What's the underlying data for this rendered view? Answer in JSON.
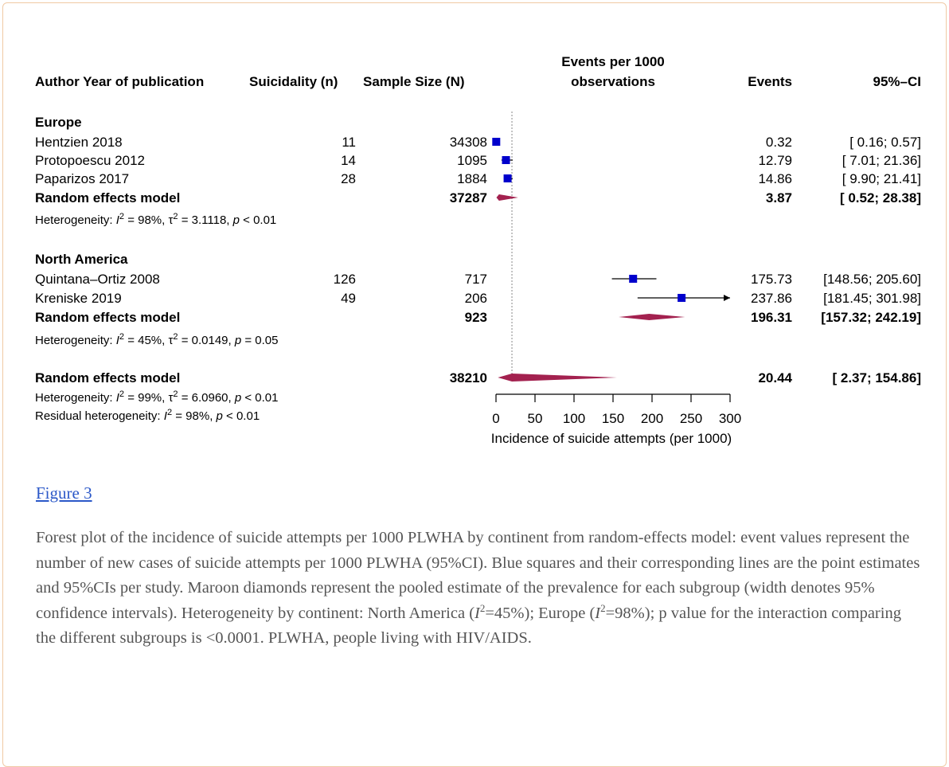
{
  "chart_data": {
    "type": "forest",
    "header": {
      "author": "Author Year of publication",
      "suicidality": "Suicidality (n)",
      "sample": "Sample Size (N)",
      "plot_line1": "Events per 1000",
      "plot_line2": "observations",
      "events": "Events",
      "ci": "95%–CI"
    },
    "groups": [
      {
        "name": "Europe",
        "studies": [
          {
            "author": "Hentzien 2018",
            "n": "11",
            "N": "34308",
            "est": 0.32,
            "lo": 0.16,
            "hi": 0.57,
            "events": "0.32",
            "ci": "[ 0.16; 0.57]"
          },
          {
            "author": "Protopoescu 2012",
            "n": "14",
            "N": "1095",
            "est": 12.79,
            "lo": 7.01,
            "hi": 21.36,
            "events": "12.79",
            "ci": "[ 7.01; 21.36]"
          },
          {
            "author": "Paparizos 2017",
            "n": "28",
            "N": "1884",
            "est": 14.86,
            "lo": 9.9,
            "hi": 21.41,
            "events": "14.86",
            "ci": "[ 9.90; 21.41]"
          }
        ],
        "model": {
          "label": "Random effects model",
          "N": "37287",
          "est": 3.87,
          "lo": 0.52,
          "hi": 28.38,
          "events": "3.87",
          "ci": "[ 0.52; 28.38]"
        },
        "heterogeneity": {
          "prefix": "Heterogeneity: ",
          "I2": "98%",
          "tau2": "3.1118",
          "p": "< 0.01"
        }
      },
      {
        "name": "North America",
        "studies": [
          {
            "author": "Quintana–Ortiz 2008",
            "n": "126",
            "N": "717",
            "est": 175.73,
            "lo": 148.56,
            "hi": 205.6,
            "events": "175.73",
            "ci": "[148.56; 205.60]"
          },
          {
            "author": "Kreniske 2019",
            "n": "49",
            "N": "206",
            "est": 237.86,
            "lo": 181.45,
            "hi": 301.98,
            "events": "237.86",
            "ci": "[181.45; 301.98]"
          }
        ],
        "model": {
          "label": "Random effects model",
          "N": "923",
          "est": 196.31,
          "lo": 157.32,
          "hi": 242.19,
          "events": "196.31",
          "ci": "[157.32; 242.19]"
        },
        "heterogeneity": {
          "prefix": "Heterogeneity: ",
          "I2": "45%",
          "tau2": "0.0149",
          "p": "= 0.05"
        }
      }
    ],
    "overall": {
      "label": "Random effects model",
      "N": "38210",
      "est": 20.44,
      "lo": 2.37,
      "hi": 154.86,
      "events": "20.44",
      "ci": "[ 2.37; 154.86]",
      "heterogeneity": {
        "prefix": "Heterogeneity: ",
        "I2": "99%",
        "tau2": "6.0960",
        "p": "< 0.01"
      },
      "residual": {
        "prefix": "Residual heterogeneity: ",
        "I2": "98%",
        "p": "< 0.01"
      }
    },
    "reference_line": 20.44,
    "xlim": [
      0,
      300
    ],
    "xticks": [
      0,
      50,
      100,
      150,
      200,
      250,
      300
    ],
    "xlabel": "Incidence of suicide attempts (per 1000)",
    "colors": {
      "square": "#0000cc",
      "diamond": "#a3214f",
      "line": "#000000"
    }
  },
  "figure_link": "Figure 3",
  "caption": {
    "p1": "Forest plot of the incidence of suicide attempts per 1000 PLWHA by continent from random-effects model: event values represent the number of new cases of suicide attempts per 1000 PLWHA (95%CI). Blue squares and their corresponding lines are the point estimates and 95%CIs per study. Maroon diamonds represent the pooled estimate of the prevalence for each subgroup (width denotes 95% confidence intervals). Heterogeneity by continent: North America (",
    "i2a": "=45%); Europe (",
    "i2b": "=98%); p value for the interaction comparing the different subgroups is <0.0001. PLWHA, people living with HIV/AIDS.",
    "i_letter": "I",
    "sup": "2"
  }
}
